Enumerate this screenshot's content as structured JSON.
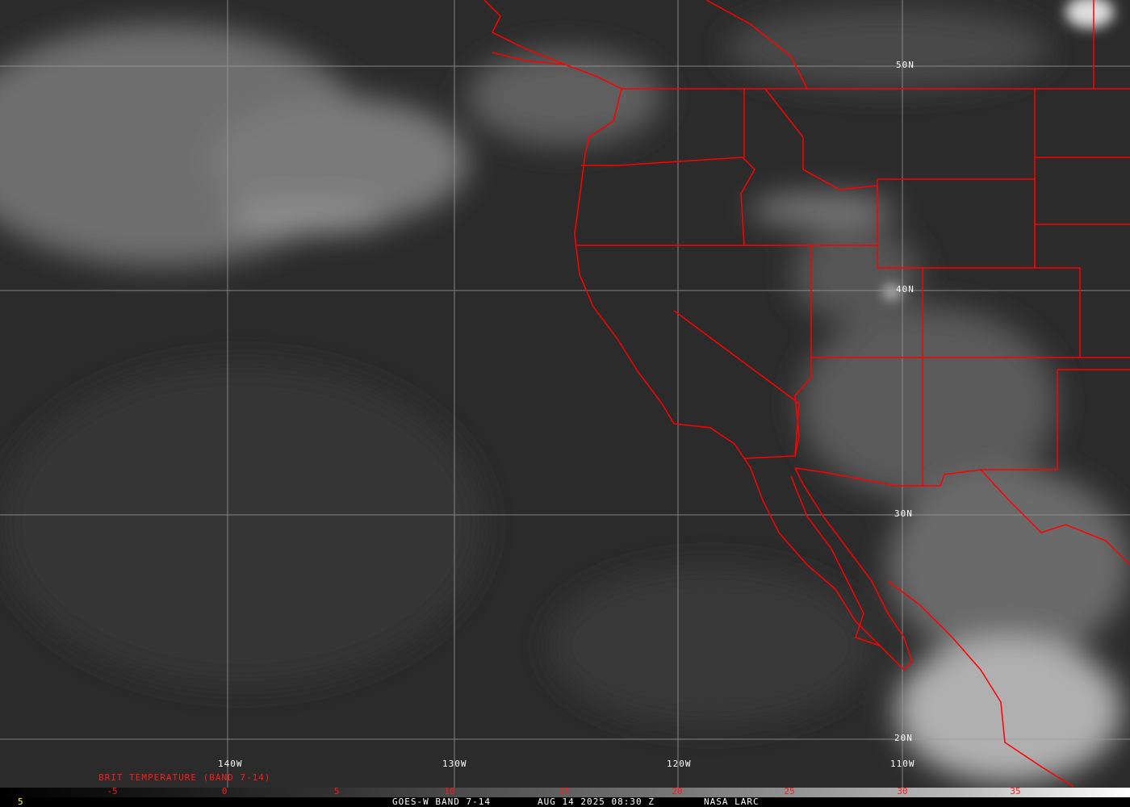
{
  "image": {
    "description_type": "satellite-infrared",
    "boundary_color": "#ff0000",
    "grid_color": "#9a9a9a"
  },
  "longitude_labels": [
    "140W",
    "130W",
    "120W",
    "110W"
  ],
  "latitude_labels": [
    "50N",
    "40N",
    "30N",
    "20N"
  ],
  "colorbar": {
    "title": "BRIT TEMPERATURE (BAND 7-14)",
    "ticks": [
      "-5",
      "0",
      "5",
      "10",
      "15",
      "20",
      "25",
      "30",
      "35"
    ]
  },
  "footer": {
    "frame_number": "5",
    "product": "GOES-W BAND 7-14",
    "datetime": "AUG 14 2025 08:30 Z",
    "source": "NASA LARC"
  }
}
